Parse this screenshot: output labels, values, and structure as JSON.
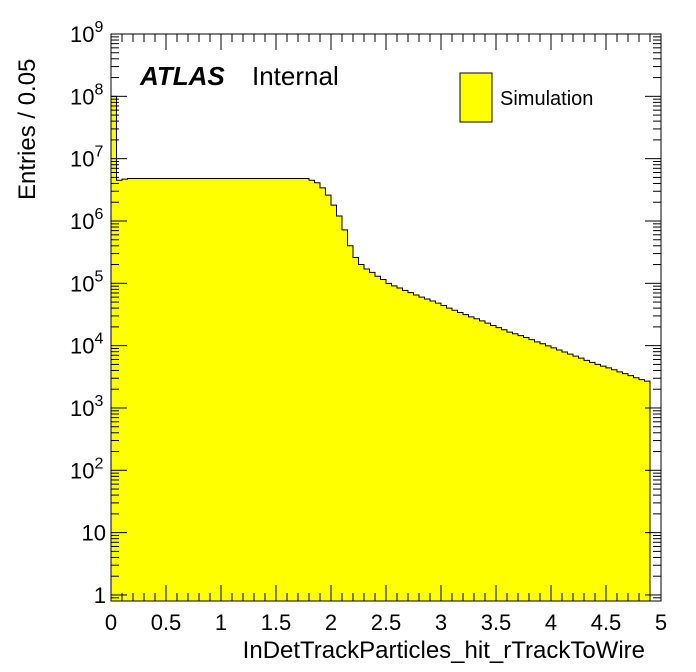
{
  "chart_data": {
    "type": "bar",
    "style": "histogram",
    "xlabel": "InDetTrackParticles_hit_rTrackToWire",
    "ylabel": "Entries / 0.05",
    "xlim": [
      0,
      5
    ],
    "ylim": [
      0.8,
      1000000000
    ],
    "yscale": "log",
    "bin_width": 0.05,
    "x_ticks": [
      "0",
      "0.5",
      "1",
      "1.5",
      "2",
      "2.5",
      "3",
      "3.5",
      "4",
      "4.5",
      "5"
    ],
    "x_tick_values": [
      0,
      0.5,
      1,
      1.5,
      2,
      2.5,
      3,
      3.5,
      4,
      4.5,
      5
    ],
    "y_ticks": [
      {
        "value": 1,
        "base": "1",
        "exp": ""
      },
      {
        "value": 10,
        "base": "10",
        "exp": ""
      },
      {
        "value": 100,
        "base": "10",
        "exp": "2"
      },
      {
        "value": 1000,
        "base": "10",
        "exp": "3"
      },
      {
        "value": 10000,
        "base": "10",
        "exp": "4"
      },
      {
        "value": 100000,
        "base": "10",
        "exp": "5"
      },
      {
        "value": 1000000,
        "base": "10",
        "exp": "6"
      },
      {
        "value": 10000000,
        "base": "10",
        "exp": "7"
      },
      {
        "value": 100000000,
        "base": "10",
        "exp": "8"
      },
      {
        "value": 1000000000,
        "base": "10",
        "exp": "9"
      }
    ],
    "fill_color": "#ffff00",
    "line_color": "#000000",
    "legend": {
      "position": "top-right",
      "entries": [
        {
          "name": "Simulation",
          "color": "#ffff00"
        }
      ]
    },
    "series": [
      {
        "name": "Simulation",
        "values": [
          100000000,
          4500000,
          4700000,
          4800000,
          4800000,
          4800000,
          4800000,
          4800000,
          4800000,
          4800000,
          4800000,
          4800000,
          4800000,
          4800000,
          4800000,
          4800000,
          4800000,
          4800000,
          4800000,
          4800000,
          4800000,
          4800000,
          4800000,
          4800000,
          4800000,
          4800000,
          4800000,
          4800000,
          4800000,
          4800000,
          4800000,
          4800000,
          4800000,
          4800000,
          4800000,
          4800000,
          4500000,
          4100000,
          3400000,
          2600000,
          1800000,
          1200000,
          720000,
          400000,
          260000,
          200000,
          170000,
          150000,
          130000,
          115000,
          100000,
          91000,
          84000,
          77000,
          71000,
          65000,
          60000,
          56000,
          52000,
          48000,
          44000,
          40000,
          37000,
          34000,
          31500,
          29000,
          27000,
          25000,
          23000,
          21000,
          19500,
          18000,
          16500,
          15500,
          14500,
          13500,
          12500,
          11500,
          10700,
          9900,
          9200,
          8500,
          7900,
          7300,
          6800,
          6300,
          5800,
          5400,
          5000,
          4700,
          4400,
          4100,
          3800,
          3550,
          3300,
          3050,
          2850,
          2700
        ]
      }
    ]
  },
  "labels": {
    "experiment": "ATLAS",
    "status": "Internal"
  }
}
